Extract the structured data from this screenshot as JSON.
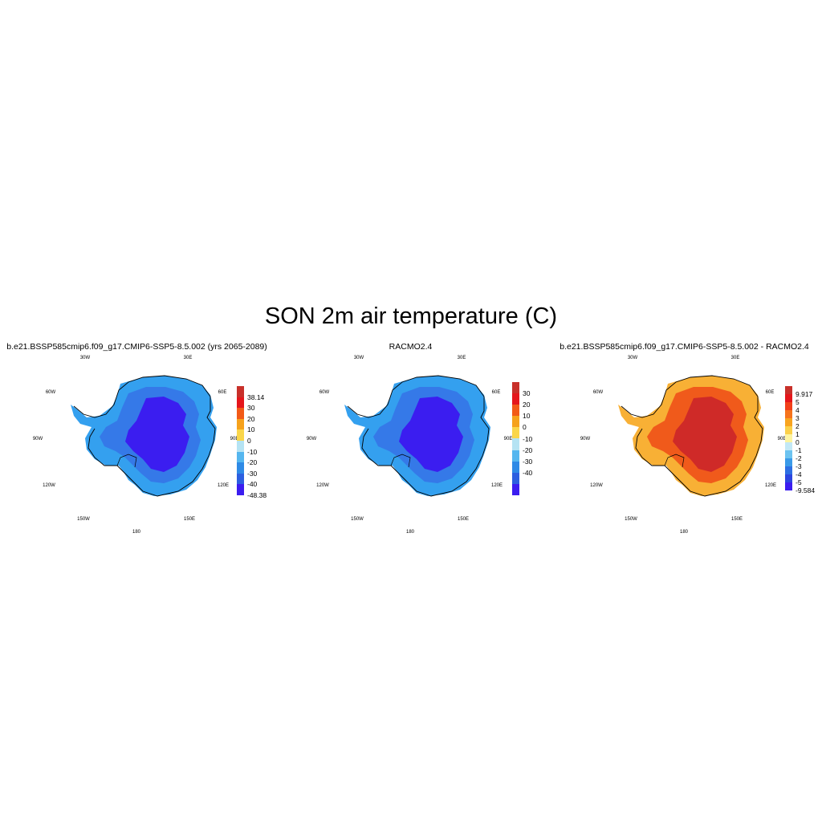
{
  "figure_title": "SON 2m air temperature (C)",
  "panels": [
    {
      "title": "b.e21.BSSP585cmip6.f09_g17.CMIP6-SSP5-8.5.002 (yrs 2065-2089)",
      "longitude_labels": [
        "30W",
        "30E",
        "60W",
        "60E",
        "90W",
        "90E",
        "120W",
        "120E",
        "150W",
        "150E",
        "180"
      ],
      "colorbar": {
        "labels": [
          "38.14",
          "30",
          "20",
          "10",
          "0",
          "-10",
          "-20",
          "-30",
          "-40",
          "-48.38"
        ],
        "colors": [
          "#c8302a",
          "#e5161b",
          "#f25a17",
          "#f6a21c",
          "#fad64a",
          "#b5e3f3",
          "#55b6ef",
          "#2e8ae6",
          "#2c5fe0",
          "#3b1df0"
        ]
      },
      "map_colors": {
        "coast": "#34a0ef",
        "mid": "#3579e8",
        "interior": "#3b1df0"
      }
    },
    {
      "title": "RACMO2.4",
      "longitude_labels": [
        "30W",
        "30E",
        "60W",
        "60E",
        "90W",
        "90E",
        "120W",
        "120E",
        "150W",
        "150E",
        "180"
      ],
      "colorbar": {
        "labels": [
          "30",
          "20",
          "10",
          "0",
          "-10",
          "-20",
          "-30",
          "-40"
        ],
        "colors": [
          "#c8302a",
          "#e5161b",
          "#f25a17",
          "#f6a21c",
          "#fad64a",
          "#b5e3f3",
          "#55b6ef",
          "#2e8ae6",
          "#2c5fe0",
          "#3b1df0"
        ]
      },
      "map_colors": {
        "coast": "#34a0ef",
        "mid": "#3579e8",
        "interior": "#3b1df0"
      }
    },
    {
      "title": "b.e21.BSSP585cmip6.f09_g17.CMIP6-SSP5-8.5.002 - RACMO2.4",
      "longitude_labels": [
        "30W",
        "30E",
        "60W",
        "60E",
        "90W",
        "90E",
        "120W",
        "120E",
        "150W",
        "150E",
        "180"
      ],
      "colorbar": {
        "labels": [
          "9.917",
          "5",
          "4",
          "3",
          "2",
          "1",
          "0",
          "-1",
          "-2",
          "-3",
          "-4",
          "-5",
          "-9.584"
        ],
        "colors": [
          "#c8302a",
          "#e5161b",
          "#f2401a",
          "#f6731c",
          "#f8a41f",
          "#fbd04a",
          "#fdf4a0",
          "#c2e8f6",
          "#6cc3f0",
          "#3a9ae8",
          "#2d6fe3",
          "#2c46e0",
          "#3b1df0"
        ]
      },
      "map_colors": {
        "coast": "#f8b035",
        "mid": "#f05a1b",
        "interior": "#cf2a28"
      }
    }
  ]
}
